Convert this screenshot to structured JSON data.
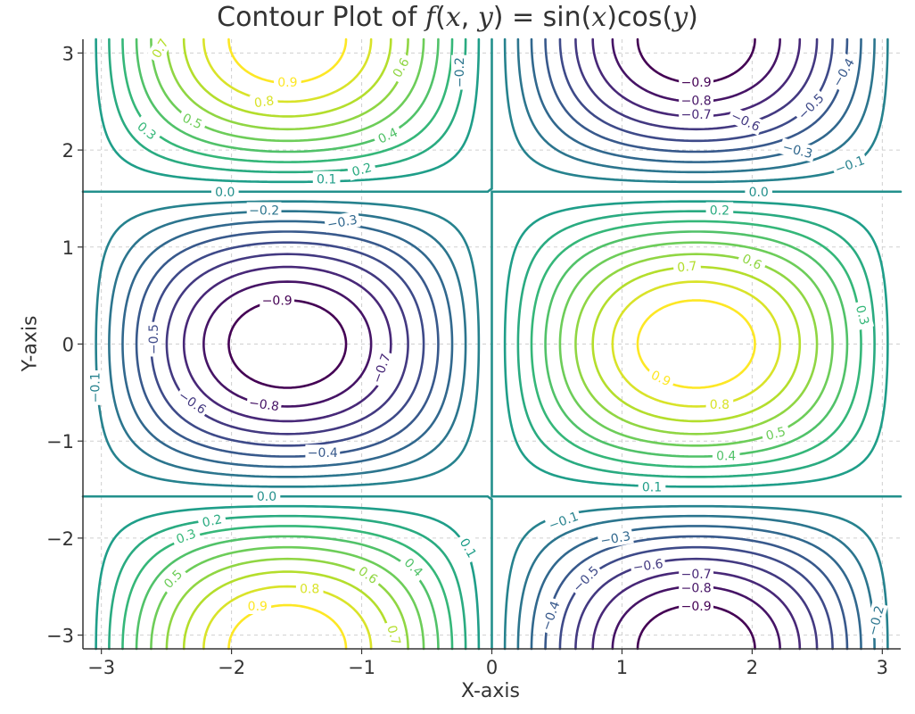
{
  "chart_data": {
    "type": "contour",
    "title": {
      "prefix": "Contour Plot of ",
      "function": [
        {
          "t": "f",
          "i": true
        },
        {
          "t": "(",
          "i": false
        },
        {
          "t": "x",
          "i": true
        },
        {
          "t": ", ",
          "i": false
        },
        {
          "t": "y",
          "i": true
        },
        {
          "t": ") = sin(",
          "i": false
        },
        {
          "t": "x",
          "i": true
        },
        {
          "t": ")cos(",
          "i": false
        },
        {
          "t": "y",
          "i": true
        },
        {
          "t": ")",
          "i": false
        }
      ]
    },
    "xlabel": "X-axis",
    "ylabel": "Y-axis",
    "xlim": [
      -3.14159,
      3.14159
    ],
    "ylim": [
      -3.14159,
      3.14159
    ],
    "xticks": [
      -3,
      -2,
      -1,
      0,
      1,
      2,
      3
    ],
    "yticks": [
      -3,
      -2,
      -1,
      0,
      1,
      2,
      3
    ],
    "xtick_labels": [
      "−3",
      "−2",
      "−1",
      "0",
      "1",
      "2",
      "3"
    ],
    "ytick_labels": [
      "−3",
      "−2",
      "−1",
      "0",
      "1",
      "2",
      "3"
    ],
    "grid": true,
    "grid_style": "dashed",
    "colormap": "viridis",
    "levels": [
      -0.9,
      -0.8,
      -0.7,
      -0.6,
      -0.5,
      -0.4,
      -0.3,
      -0.2,
      -0.1,
      0.0,
      0.1,
      0.2,
      0.3,
      0.4,
      0.5,
      0.6,
      0.7,
      0.8,
      0.9
    ],
    "contour_labels": [
      {
        "text": "0.9",
        "x": -1.57,
        "y": 2.7,
        "angle": 0
      },
      {
        "text": "0.8",
        "x": -1.75,
        "y": 2.5,
        "angle": -8
      },
      {
        "text": "0.7",
        "x": -2.55,
        "y": 3.05,
        "angle": -60
      },
      {
        "text": "0.6",
        "x": -0.7,
        "y": 2.85,
        "angle": -60
      },
      {
        "text": "0.5",
        "x": -2.3,
        "y": 2.3,
        "angle": 25
      },
      {
        "text": "0.4",
        "x": -0.8,
        "y": 2.15,
        "angle": -25
      },
      {
        "text": "0.3",
        "x": -2.65,
        "y": 2.2,
        "angle": 40
      },
      {
        "text": "0.2",
        "x": -1.0,
        "y": 1.8,
        "angle": -15
      },
      {
        "text": "0.1",
        "x": -1.27,
        "y": 1.7,
        "angle": 0
      },
      {
        "text": "0.0",
        "x": -2.05,
        "y": 1.57,
        "angle": 0
      },
      {
        "text": "−0.2",
        "x": -0.25,
        "y": 2.8,
        "angle": -90
      },
      {
        "text": "−0.9",
        "x": 1.57,
        "y": 2.7,
        "angle": 0
      },
      {
        "text": "−0.8",
        "x": 1.57,
        "y": 2.51,
        "angle": 0
      },
      {
        "text": "−0.7",
        "x": 1.57,
        "y": 2.37,
        "angle": 0
      },
      {
        "text": "−0.6",
        "x": 1.95,
        "y": 2.3,
        "angle": 25
      },
      {
        "text": "−0.5",
        "x": 2.45,
        "y": 2.45,
        "angle": -45
      },
      {
        "text": "−0.4",
        "x": 2.7,
        "y": 2.8,
        "angle": -60
      },
      {
        "text": "−0.3",
        "x": 2.35,
        "y": 2.0,
        "angle": 15
      },
      {
        "text": "−0.1",
        "x": 2.75,
        "y": 1.85,
        "angle": -20
      },
      {
        "text": "0.0",
        "x": 2.05,
        "y": 1.57,
        "angle": 0
      },
      {
        "text": "−0.2",
        "x": -1.75,
        "y": 1.38,
        "angle": 0
      },
      {
        "text": "−0.3",
        "x": -1.15,
        "y": 1.26,
        "angle": -10
      },
      {
        "text": "−0.9",
        "x": -1.65,
        "y": 0.45,
        "angle": 0
      },
      {
        "text": "−0.5",
        "x": -2.6,
        "y": 0.05,
        "angle": -90
      },
      {
        "text": "−0.7",
        "x": -0.85,
        "y": -0.25,
        "angle": -70
      },
      {
        "text": "−0.1",
        "x": -3.05,
        "y": -0.45,
        "angle": -90
      },
      {
        "text": "−0.6",
        "x": -2.3,
        "y": -0.6,
        "angle": 35
      },
      {
        "text": "−0.8",
        "x": -1.75,
        "y": -0.62,
        "angle": 8
      },
      {
        "text": "−0.4",
        "x": -1.3,
        "y": -1.12,
        "angle": 0
      },
      {
        "text": "0.2",
        "x": 1.75,
        "y": 1.38,
        "angle": 0
      },
      {
        "text": "0.7",
        "x": 1.5,
        "y": 0.8,
        "angle": -5
      },
      {
        "text": "0.6",
        "x": 2.0,
        "y": 0.85,
        "angle": 25
      },
      {
        "text": "0.3",
        "x": 2.85,
        "y": 0.3,
        "angle": 75
      },
      {
        "text": "0.9",
        "x": 1.3,
        "y": -0.35,
        "angle": 25
      },
      {
        "text": "0.8",
        "x": 1.75,
        "y": -0.62,
        "angle": 0
      },
      {
        "text": "0.5",
        "x": 2.18,
        "y": -0.92,
        "angle": -15
      },
      {
        "text": "0.4",
        "x": 1.8,
        "y": -1.15,
        "angle": 0
      },
      {
        "text": "0.1",
        "x": 1.23,
        "y": -1.47,
        "angle": 0
      },
      {
        "text": "0.0",
        "x": -1.73,
        "y": -1.57,
        "angle": 0
      },
      {
        "text": "0.2",
        "x": -2.15,
        "y": -1.82,
        "angle": -12
      },
      {
        "text": "0.3",
        "x": -2.35,
        "y": -1.98,
        "angle": -20
      },
      {
        "text": "0.1",
        "x": -0.18,
        "y": -2.1,
        "angle": 60
      },
      {
        "text": "0.5",
        "x": -2.45,
        "y": -2.42,
        "angle": -45
      },
      {
        "text": "0.6",
        "x": -0.95,
        "y": -2.38,
        "angle": 35
      },
      {
        "text": "0.4",
        "x": -0.6,
        "y": -2.3,
        "angle": 45
      },
      {
        "text": "0.8",
        "x": -1.4,
        "y": -2.52,
        "angle": 0
      },
      {
        "text": "0.9",
        "x": -1.8,
        "y": -2.7,
        "angle": 0
      },
      {
        "text": "0.7",
        "x": -0.75,
        "y": -3.0,
        "angle": 75
      },
      {
        "text": "−0.1",
        "x": 0.55,
        "y": -1.82,
        "angle": -20
      },
      {
        "text": "−0.3",
        "x": 0.95,
        "y": -2.0,
        "angle": -10
      },
      {
        "text": "−0.6",
        "x": 1.2,
        "y": -2.28,
        "angle": -8
      },
      {
        "text": "−0.5",
        "x": 0.72,
        "y": -2.42,
        "angle": -45
      },
      {
        "text": "−0.7",
        "x": 1.57,
        "y": -2.37,
        "angle": 0
      },
      {
        "text": "−0.8",
        "x": 1.57,
        "y": -2.51,
        "angle": 0
      },
      {
        "text": "−0.9",
        "x": 1.57,
        "y": -2.7,
        "angle": 0
      },
      {
        "text": "−0.4",
        "x": 0.45,
        "y": -2.8,
        "angle": -70
      },
      {
        "text": "−0.2",
        "x": 2.95,
        "y": -2.85,
        "angle": -75
      }
    ]
  }
}
